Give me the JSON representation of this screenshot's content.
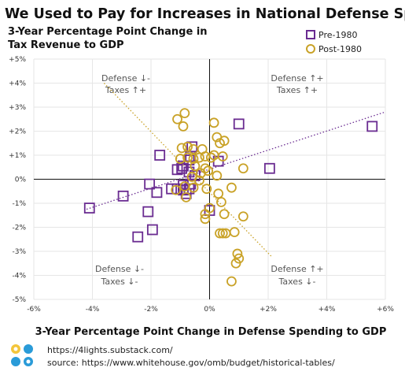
{
  "chart_data": {
    "type": "scatter",
    "title": "We Used to Pay for Increases in National Defense Spending",
    "ylabel": [
      "3-Year Percentage Point Change in",
      "Tax Revenue to GDP"
    ],
    "xlabel": "3-Year Percentage Point Change in Defense Spending to GDP",
    "xlim": [
      -6,
      6
    ],
    "ylim": [
      -5,
      5
    ],
    "x_ticks": [
      "-6%",
      "-4%",
      "-2%",
      "0%",
      "+2%",
      "+4%",
      "+6%"
    ],
    "y_ticks": [
      "+5%",
      "+4%",
      "+3%",
      "+2%",
      "+1%",
      "0%",
      "-1%",
      "-2%",
      "-3%",
      "-4%",
      "-5%"
    ],
    "quadrant_labels": {
      "top_left": [
        "Defense ↓-",
        "Taxes ↑+"
      ],
      "top_right": [
        "Defense ↑+",
        "Taxes ↑+"
      ],
      "bottom_left": [
        "Defense ↓-",
        "Taxes ↓-"
      ],
      "bottom_right": [
        "Defense ↑+",
        "Taxes ↓-"
      ]
    },
    "legend_position": "top-right",
    "series": [
      {
        "name": "Pre-1980",
        "marker": "square",
        "color": "#6a2c91",
        "trendline": {
          "x1": -4.2,
          "y1": -1.25,
          "x2": 6.0,
          "y2": 2.8
        },
        "points": [
          [
            5.55,
            2.2
          ],
          [
            2.05,
            0.45
          ],
          [
            1.0,
            2.3
          ],
          [
            0.3,
            0.75
          ],
          [
            0.0,
            -1.3
          ],
          [
            -0.6,
            1.35
          ],
          [
            -0.65,
            0.95
          ],
          [
            -0.7,
            0.8
          ],
          [
            -0.9,
            0.55
          ],
          [
            -0.95,
            0.45
          ],
          [
            -1.1,
            0.4
          ],
          [
            -0.7,
            0.3
          ],
          [
            -0.5,
            0.15
          ],
          [
            -0.65,
            -0.2
          ],
          [
            -0.9,
            -0.25
          ],
          [
            -0.7,
            -0.4
          ],
          [
            -0.9,
            -0.45
          ],
          [
            -1.1,
            -0.4
          ],
          [
            -1.3,
            -0.4
          ],
          [
            -0.8,
            -0.6
          ],
          [
            -1.7,
            1.0
          ],
          [
            -1.8,
            -0.55
          ],
          [
            -2.05,
            -0.2
          ],
          [
            -2.1,
            -1.35
          ],
          [
            -1.95,
            -2.1
          ],
          [
            -2.45,
            -2.4
          ],
          [
            -2.95,
            -0.7
          ],
          [
            -4.1,
            -1.2
          ]
        ]
      },
      {
        "name": "Post-1980",
        "marker": "circle",
        "color": "#c9a227",
        "trendline": {
          "x1": -3.6,
          "y1": 4.0,
          "x2": 2.1,
          "y2": -3.2
        },
        "points": [
          [
            -0.85,
            2.75
          ],
          [
            -0.9,
            2.2
          ],
          [
            -1.1,
            2.5
          ],
          [
            0.15,
            2.35
          ],
          [
            0.25,
            1.75
          ],
          [
            0.35,
            1.5
          ],
          [
            0.5,
            1.6
          ],
          [
            -0.95,
            1.3
          ],
          [
            -0.75,
            1.35
          ],
          [
            -0.55,
            1.25
          ],
          [
            -0.25,
            1.25
          ],
          [
            -1.0,
            0.85
          ],
          [
            -0.75,
            0.9
          ],
          [
            -0.55,
            0.85
          ],
          [
            -0.35,
            0.9
          ],
          [
            -0.15,
            0.95
          ],
          [
            0.05,
            0.9
          ],
          [
            0.15,
            1.0
          ],
          [
            0.45,
            0.95
          ],
          [
            -0.5,
            0.55
          ],
          [
            -0.15,
            0.45
          ],
          [
            -0.3,
            0.25
          ],
          [
            -0.05,
            0.35
          ],
          [
            0.25,
            0.15
          ],
          [
            1.15,
            0.45
          ],
          [
            -0.35,
            -0.05
          ],
          [
            -0.6,
            0.1
          ],
          [
            -0.55,
            -0.35
          ],
          [
            -0.85,
            -0.3
          ],
          [
            -1.15,
            -0.45
          ],
          [
            -0.8,
            -0.75
          ],
          [
            -0.1,
            -0.4
          ],
          [
            0.3,
            -0.6
          ],
          [
            0.75,
            -0.35
          ],
          [
            0.4,
            -0.95
          ],
          [
            0.0,
            -1.2
          ],
          [
            -0.15,
            -1.45
          ],
          [
            0.5,
            -1.45
          ],
          [
            -0.15,
            -1.65
          ],
          [
            1.15,
            -1.55
          ],
          [
            0.35,
            -2.25
          ],
          [
            0.45,
            -2.25
          ],
          [
            0.55,
            -2.25
          ],
          [
            0.85,
            -2.2
          ],
          [
            0.95,
            -3.1
          ],
          [
            1.0,
            -3.3
          ],
          [
            0.9,
            -3.5
          ],
          [
            0.75,
            -4.25
          ]
        ]
      }
    ],
    "footer": {
      "url": "https://4lights.substack.com/",
      "source": "source: https://www.whitehouse.gov/omb/budget/historical-tables/"
    }
  }
}
